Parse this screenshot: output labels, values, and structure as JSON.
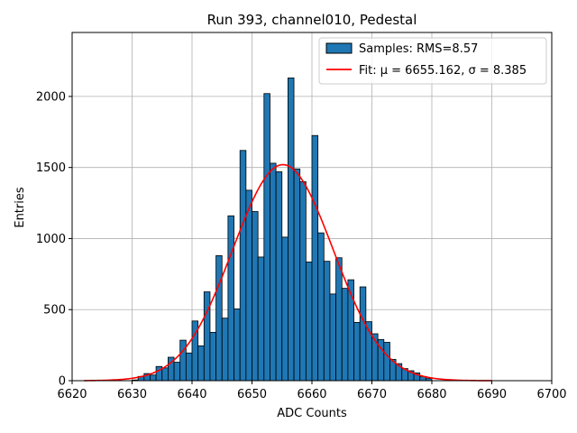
{
  "chart_data": {
    "type": "bar",
    "title": "Run 393, channel010, Pedestal",
    "xlabel": "ADC Counts",
    "ylabel": "Entries",
    "xlim": [
      6620,
      6700
    ],
    "ylim": [
      0,
      2450
    ],
    "xticks": [
      6620,
      6630,
      6640,
      6650,
      6660,
      6670,
      6680,
      6690,
      6700
    ],
    "yticks": [
      0,
      500,
      1000,
      1500,
      2000
    ],
    "grid": true,
    "bin_start": 6630,
    "bin_width": 1,
    "values": [
      5,
      30,
      50,
      40,
      100,
      90,
      165,
      130,
      285,
      195,
      420,
      245,
      625,
      340,
      880,
      440,
      1160,
      505,
      1620,
      1340,
      1190,
      870,
      2020,
      1530,
      1470,
      1010,
      2130,
      1490,
      1400,
      835,
      1725,
      1040,
      840,
      610,
      865,
      650,
      710,
      410,
      660,
      415,
      330,
      290,
      270,
      150,
      120,
      85,
      70,
      55,
      30,
      15
    ],
    "fit": {
      "mu": 6655.162,
      "sigma": 8.385,
      "amplitude": 1520,
      "x_range": [
        6622,
        6690
      ]
    },
    "legend": {
      "position": "top-right",
      "entries": [
        {
          "label": "Samples: RMS=8.57",
          "kind": "patch",
          "color": "#1f77b4"
        },
        {
          "label": "Fit: μ = 6655.162, σ = 8.385",
          "kind": "line",
          "color": "#ff0000"
        }
      ]
    },
    "colors": {
      "bar": "#1f77b4",
      "bar_edge": "#000000",
      "fit": "#ff0000",
      "grid": "#b0b0b0"
    }
  }
}
